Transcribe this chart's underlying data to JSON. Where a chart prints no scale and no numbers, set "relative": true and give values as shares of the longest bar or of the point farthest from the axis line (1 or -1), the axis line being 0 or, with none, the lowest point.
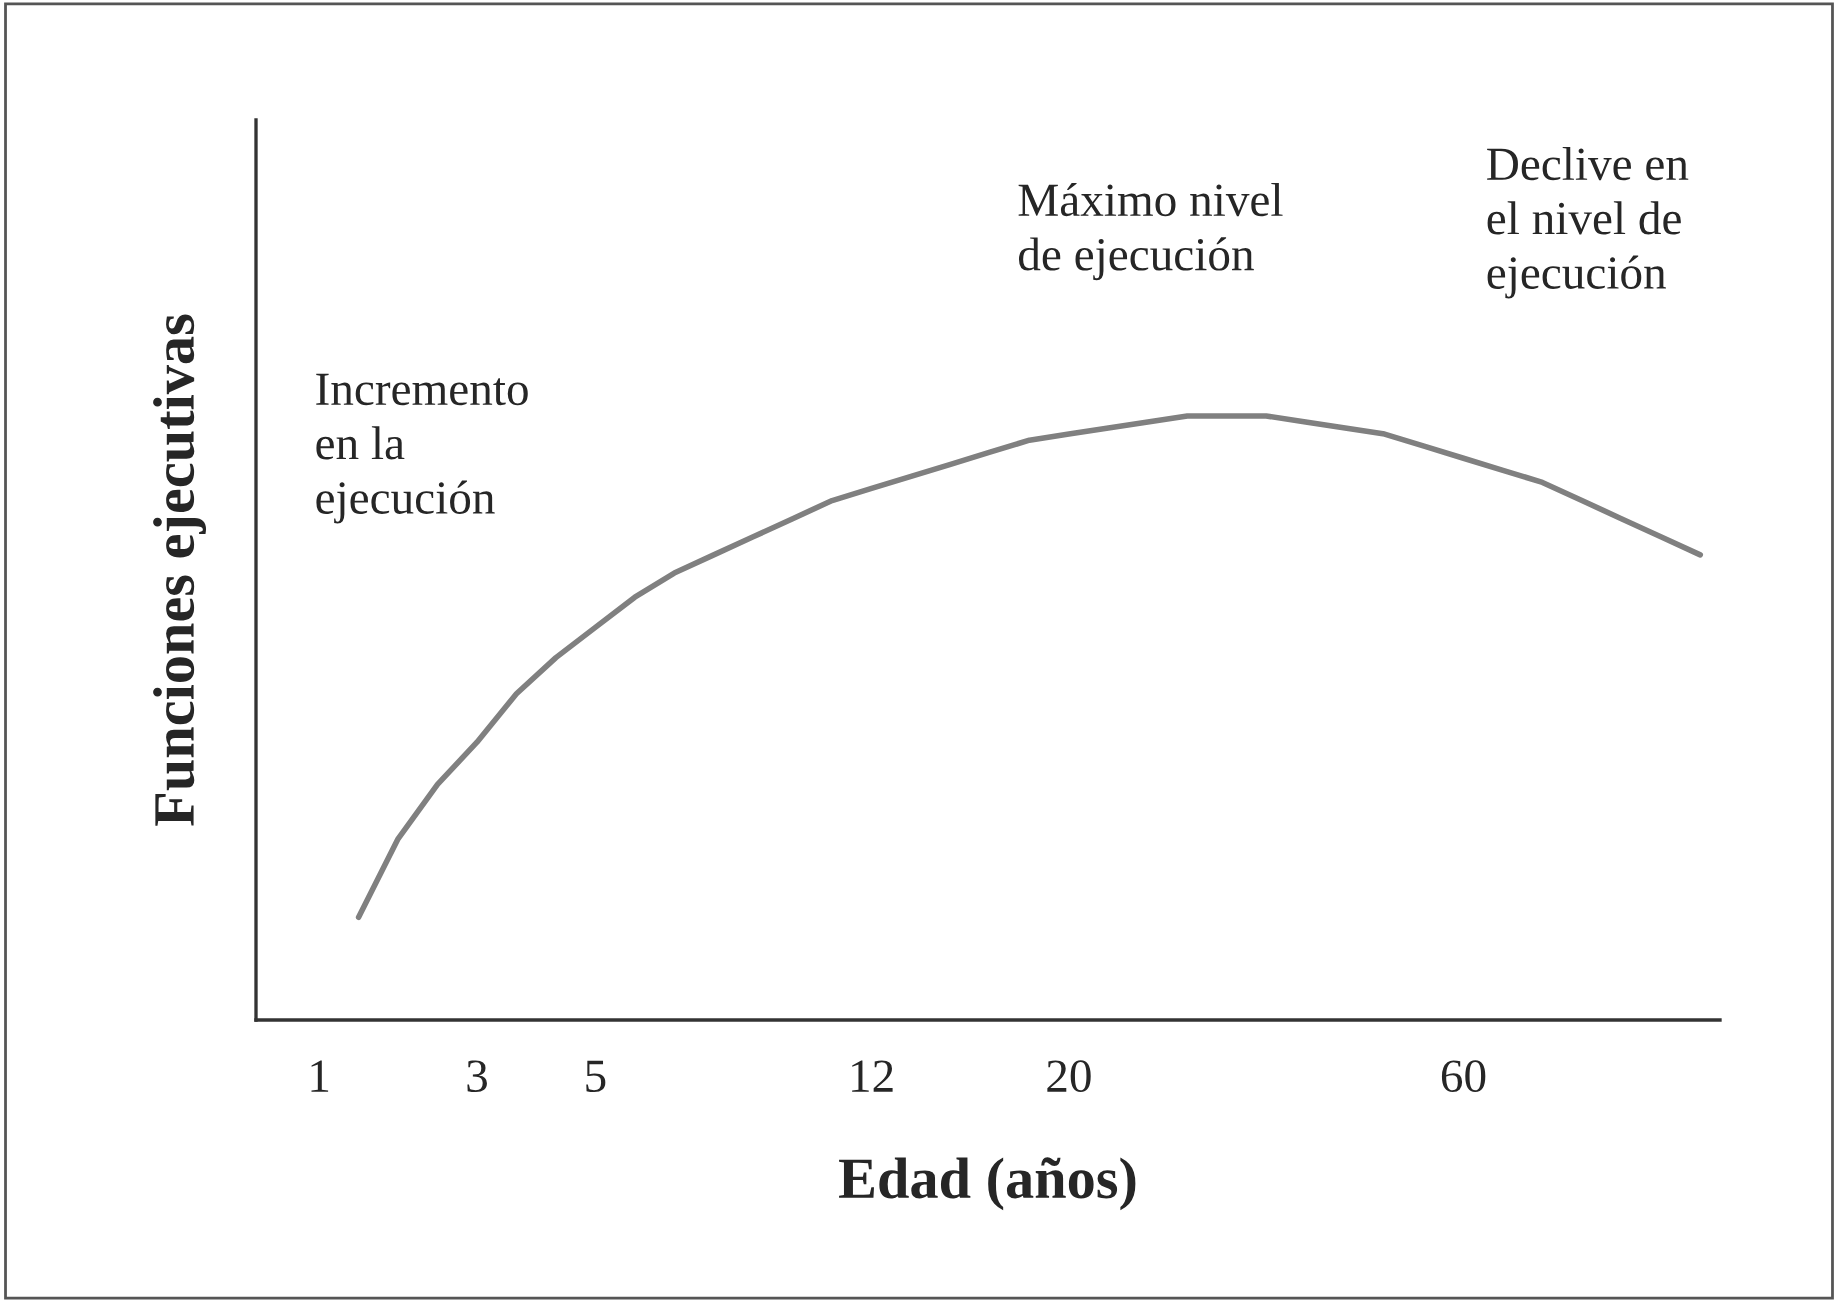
{
  "chart_data": {
    "type": "line",
    "relative": true,
    "xlabel": "Edad (años)",
    "ylabel": "Funciones ejecutivas",
    "tick_labels": "x",
    "grid": false,
    "legend": false,
    "marker": "none",
    "line_style": "solid",
    "categories": [
      "1",
      null,
      null,
      null,
      "3",
      null,
      null,
      "5",
      null,
      null,
      null,
      null,
      null,
      null,
      "12",
      null,
      null,
      null,
      null,
      "20",
      null,
      null,
      null,
      null,
      null,
      null,
      null,
      null,
      null,
      "60",
      null,
      null,
      null,
      null,
      null,
      null
    ],
    "series": [
      {
        "color": "#808080",
        "values": [
          null,
          0.17,
          0.3,
          0.39,
          0.46,
          0.54,
          0.6,
          0.65,
          0.7,
          0.74,
          0.77,
          0.8,
          0.83,
          0.86,
          0.88,
          0.9,
          0.92,
          0.94,
          0.96,
          0.97,
          0.98,
          0.99,
          1.0,
          1.0,
          1.0,
          0.99,
          0.98,
          0.97,
          0.95,
          0.93,
          0.91,
          0.89,
          0.86,
          0.83,
          0.8,
          0.77
        ]
      }
    ],
    "annotations": [
      "Incremento\nen la\nejecución",
      "Máximo nivel\nde ejecución",
      "Declive en\nel nivel de\nejecución"
    ]
  }
}
